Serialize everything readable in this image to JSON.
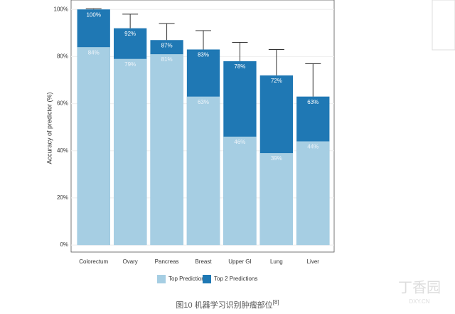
{
  "chart_data": {
    "type": "bar",
    "overlap": true,
    "y_label": "Accuracy of predictor (%)",
    "categories": [
      "Colorectum",
      "Ovary",
      "Pancreas",
      "Breast",
      "Upper GI",
      "Lung",
      "Liver"
    ],
    "series": [
      {
        "name": "Top 2 Predictions",
        "color": "#1f78b4",
        "values": [
          100,
          92,
          87,
          83,
          78,
          72,
          63
        ],
        "value_labels": [
          "100%",
          "92%",
          "87%",
          "83%",
          "78%",
          "72%",
          "63%"
        ],
        "errors": [
          0.3,
          6,
          7,
          8,
          8,
          11,
          14
        ]
      },
      {
        "name": "Top Prediction",
        "color": "#a6cee3",
        "values": [
          84,
          79,
          81,
          63,
          46,
          39,
          44
        ],
        "value_labels": [
          "84%",
          "79%",
          "81%",
          "63%",
          "46%",
          "39%",
          "44%"
        ]
      }
    ],
    "legend_order": [
      1,
      0
    ],
    "ylim": [
      -3,
      104
    ],
    "yticks": [
      {
        "value": 0,
        "label": "0%"
      },
      {
        "value": 20,
        "label": "20%"
      },
      {
        "value": 40,
        "label": "40%"
      },
      {
        "value": 60,
        "label": "60%"
      },
      {
        "value": 80,
        "label": "80%"
      },
      {
        "value": 100,
        "label": "100%"
      }
    ],
    "grid": true
  },
  "caption": "图10 机器学习识别肿瘤部位",
  "caption_ref": "[8]",
  "watermark": "丁香园",
  "watermark_url": "DXY.CN"
}
